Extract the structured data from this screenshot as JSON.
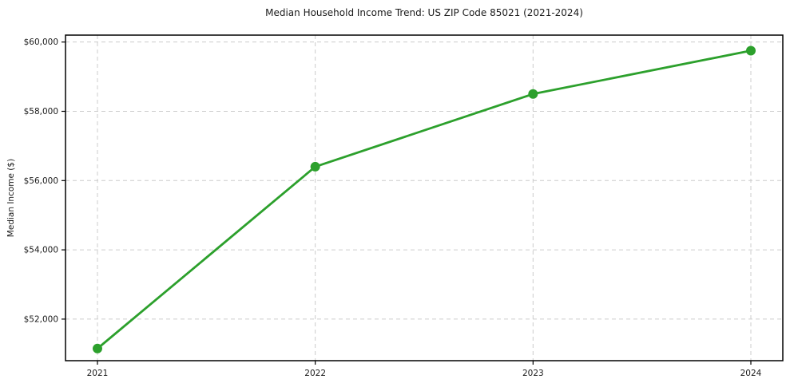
{
  "chart_data": {
    "type": "line",
    "title": "Median Household Income Trend: US ZIP Code 85021 (2021-2024)",
    "xlabel": "",
    "ylabel": "Median Income ($)",
    "x": [
      2021,
      2022,
      2023,
      2024
    ],
    "xtick_labels": [
      "2021",
      "2022",
      "2023",
      "2024"
    ],
    "series": [
      {
        "name": "Median Household Income",
        "values": [
          51150,
          56400,
          58500,
          59750
        ]
      }
    ],
    "yticks": [
      52000,
      54000,
      56000,
      58000,
      60000
    ],
    "ytick_labels": [
      "$52,000",
      "$54,000",
      "$56,000",
      "$58,000",
      "$60,000"
    ],
    "ylim": [
      50800,
      60200
    ],
    "grid": true,
    "grid_style": "dashed",
    "legend_position": "none",
    "colors": {
      "line": "#2ca02c",
      "marker": "#2ca02c",
      "grid": "#cccccc",
      "spine": "#000000",
      "text": "#1a1a1a",
      "background": "#ffffff"
    }
  }
}
